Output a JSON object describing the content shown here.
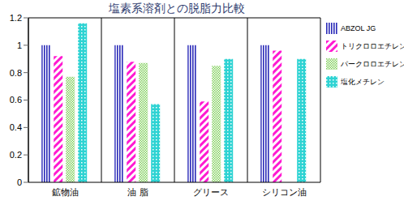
{
  "chart_data": {
    "type": "bar",
    "title": "塩素系溶剤との脱脂力比較",
    "categories": [
      "鉱物油",
      "油 脂",
      "グリース",
      "シリコン油"
    ],
    "series": [
      {
        "name": "ABZOL JG",
        "color": "#2a2ab8",
        "values": [
          1,
          1,
          1,
          1
        ]
      },
      {
        "name": "トリクロロエチレン",
        "color": "#ff1ad1",
        "values": [
          0.92,
          0.88,
          0.59,
          0.96
        ]
      },
      {
        "name": "パークロロエチレン",
        "color": "#7fcf5a",
        "values": [
          0.77,
          0.87,
          0.85,
          null
        ]
      },
      {
        "name": "塩化メチレン",
        "color": "#2ed3d3",
        "values": [
          1.16,
          0.57,
          0.9,
          0.9
        ]
      }
    ],
    "ylim": [
      0,
      1.2
    ],
    "yticks": [
      0,
      0.2,
      0.4,
      0.6,
      0.8,
      1,
      1.2
    ],
    "grid": true,
    "legend": "right"
  }
}
